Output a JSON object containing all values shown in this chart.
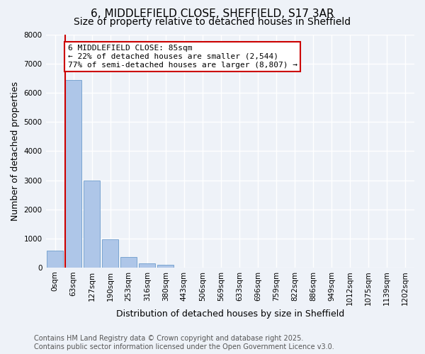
{
  "title_line1": "6, MIDDLEFIELD CLOSE, SHEFFIELD, S17 3AR",
  "title_line2": "Size of property relative to detached houses in Sheffield",
  "xlabel": "Distribution of detached houses by size in Sheffield",
  "ylabel": "Number of detached properties",
  "bin_labels": [
    "0sqm",
    "63sqm",
    "127sqm",
    "190sqm",
    "253sqm",
    "316sqm",
    "380sqm",
    "443sqm",
    "506sqm",
    "569sqm",
    "633sqm",
    "696sqm",
    "759sqm",
    "822sqm",
    "886sqm",
    "949sqm",
    "1012sqm",
    "1075sqm",
    "1139sqm",
    "1202sqm"
  ],
  "bar_heights": [
    580,
    6450,
    2980,
    980,
    360,
    150,
    95,
    0,
    0,
    0,
    0,
    0,
    0,
    0,
    0,
    0,
    0,
    0,
    0,
    0
  ],
  "bar_color": "#aec6e8",
  "bar_edge_color": "#5a8fc4",
  "ylim": [
    0,
    8000
  ],
  "yticks": [
    0,
    1000,
    2000,
    3000,
    4000,
    5000,
    6000,
    7000,
    8000
  ],
  "property_bin_index": 1,
  "red_line_color": "#cc0000",
  "annotation_text": "6 MIDDLEFIELD CLOSE: 85sqm\n← 22% of detached houses are smaller (2,544)\n77% of semi-detached houses are larger (8,807) →",
  "annotation_box_color": "#ffffff",
  "annotation_box_edge_color": "#cc0000",
  "footer_line1": "Contains HM Land Registry data © Crown copyright and database right 2025.",
  "footer_line2": "Contains public sector information licensed under the Open Government Licence v3.0.",
  "background_color": "#eef2f8",
  "plot_bg_color": "#eef2f8",
  "grid_color": "#ffffff",
  "title_fontsize": 11,
  "subtitle_fontsize": 10,
  "axis_label_fontsize": 9,
  "tick_fontsize": 7.5,
  "annotation_fontsize": 8,
  "footer_fontsize": 7
}
